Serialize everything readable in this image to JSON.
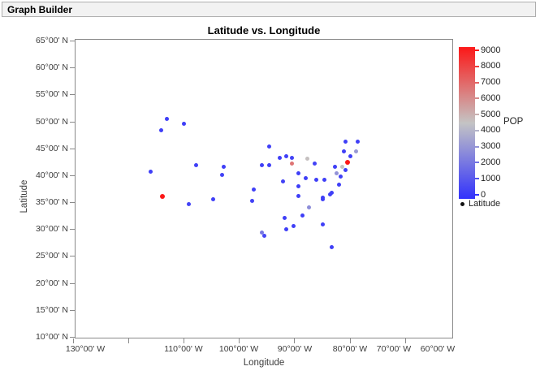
{
  "window": {
    "title": "Graph Builder"
  },
  "chart": {
    "title": "Latitude vs. Longitude",
    "x_axis": {
      "label": "Longitude",
      "ticks": [
        {
          "v": 130,
          "t": "130°00' W"
        },
        {
          "v": 120,
          "t": ""
        },
        {
          "v": 110,
          "t": "110°00' W"
        },
        {
          "v": 100,
          "t": "100°00' W"
        },
        {
          "v": 90,
          "t": "90°00' W"
        },
        {
          "v": 80,
          "t": "80°00' W"
        },
        {
          "v": 70,
          "t": "70°00' W"
        },
        {
          "v": 60,
          "t": "60°00' W"
        }
      ]
    },
    "y_axis": {
      "label": "Latitude",
      "ticks": [
        {
          "v": 65,
          "t": "65°00' N"
        },
        {
          "v": 60,
          "t": "60°00' N"
        },
        {
          "v": 55,
          "t": "55°00' N"
        },
        {
          "v": 50,
          "t": "50°00' N"
        },
        {
          "v": 45,
          "t": "45°00' N"
        },
        {
          "v": 40,
          "t": "40°00' N"
        },
        {
          "v": 35,
          "t": "35°00' N"
        },
        {
          "v": 30,
          "t": "30°00' N"
        },
        {
          "v": 25,
          "t": "25°00' N"
        },
        {
          "v": 20,
          "t": "20°00' N"
        },
        {
          "v": 15,
          "t": "15°00' N"
        },
        {
          "v": 10,
          "t": "10°00' N"
        }
      ]
    }
  },
  "legend": {
    "gradient_title": "POP",
    "gradient_ticks": [
      9000,
      8000,
      7000,
      6000,
      5000,
      4000,
      3000,
      2000,
      1000,
      0
    ],
    "marker_item_label": "Latitude"
  },
  "chart_data": {
    "type": "scatter",
    "title": "Latitude vs. Longitude",
    "xlabel": "Longitude",
    "ylabel": "Latitude",
    "x_range_deg_west": [
      129.7,
      61.3
    ],
    "y_range_deg_north": [
      65.3,
      9.7
    ],
    "x_ticks_deg_west": [
      130,
      120,
      110,
      100,
      90,
      80,
      70,
      60
    ],
    "y_ticks_deg_north": [
      65,
      60,
      55,
      50,
      45,
      40,
      35,
      30,
      25,
      20,
      15,
      10
    ],
    "grid": false,
    "legend_position": "right",
    "background_map": "US states with Alaska, Hawaii and island outlines",
    "color_scale": {
      "variable": "POP",
      "min": 0,
      "max": 9000,
      "low_color": "#3232fc",
      "mid_color": "#c4c4c4",
      "high_color": "#fc1818"
    },
    "points": [
      {
        "lon_w": 113.1,
        "lat_n": 50.5,
        "pop": 400
      },
      {
        "lon_w": 110.0,
        "lat_n": 49.6,
        "pop": 400
      },
      {
        "lon_w": 114.0,
        "lat_n": 48.3,
        "pop": 400
      },
      {
        "lon_w": 116.0,
        "lat_n": 40.6,
        "pop": 400
      },
      {
        "lon_w": 113.8,
        "lat_n": 36.1,
        "pop": 9000
      },
      {
        "lon_w": 109.1,
        "lat_n": 34.6,
        "pop": 500
      },
      {
        "lon_w": 107.8,
        "lat_n": 41.8,
        "pop": 400
      },
      {
        "lon_w": 102.7,
        "lat_n": 41.6,
        "pop": 400
      },
      {
        "lon_w": 103.0,
        "lat_n": 40.0,
        "pop": 500
      },
      {
        "lon_w": 104.7,
        "lat_n": 35.5,
        "pop": 400
      },
      {
        "lon_w": 97.3,
        "lat_n": 37.4,
        "pop": 400
      },
      {
        "lon_w": 97.7,
        "lat_n": 35.3,
        "pop": 500
      },
      {
        "lon_w": 94.6,
        "lat_n": 45.4,
        "pop": 400
      },
      {
        "lon_w": 95.9,
        "lat_n": 41.8,
        "pop": 400
      },
      {
        "lon_w": 94.5,
        "lat_n": 41.8,
        "pop": 400
      },
      {
        "lon_w": 92.6,
        "lat_n": 43.2,
        "pop": 400
      },
      {
        "lon_w": 91.4,
        "lat_n": 43.5,
        "pop": 400
      },
      {
        "lon_w": 90.5,
        "lat_n": 43.3,
        "pop": 500
      },
      {
        "lon_w": 90.5,
        "lat_n": 42.1,
        "pop": 6600
      },
      {
        "lon_w": 87.6,
        "lat_n": 43.0,
        "pop": 4600
      },
      {
        "lon_w": 86.3,
        "lat_n": 42.1,
        "pop": 500
      },
      {
        "lon_w": 92.1,
        "lat_n": 38.9,
        "pop": 500
      },
      {
        "lon_w": 89.3,
        "lat_n": 40.3,
        "pop": 400
      },
      {
        "lon_w": 87.9,
        "lat_n": 39.4,
        "pop": 400
      },
      {
        "lon_w": 86.0,
        "lat_n": 39.2,
        "pop": 400
      },
      {
        "lon_w": 89.2,
        "lat_n": 37.9,
        "pop": 400
      },
      {
        "lon_w": 89.3,
        "lat_n": 36.2,
        "pop": 400
      },
      {
        "lon_w": 84.8,
        "lat_n": 35.6,
        "pop": 400
      },
      {
        "lon_w": 87.4,
        "lat_n": 34.0,
        "pop": 2800
      },
      {
        "lon_w": 91.8,
        "lat_n": 32.1,
        "pop": 400
      },
      {
        "lon_w": 88.6,
        "lat_n": 32.5,
        "pop": 400
      },
      {
        "lon_w": 90.1,
        "lat_n": 30.6,
        "pop": 400
      },
      {
        "lon_w": 91.5,
        "lat_n": 29.9,
        "pop": 400
      },
      {
        "lon_w": 95.9,
        "lat_n": 29.3,
        "pop": 2200
      },
      {
        "lon_w": 95.5,
        "lat_n": 28.8,
        "pop": 600
      },
      {
        "lon_w": 84.9,
        "lat_n": 30.8,
        "pop": 400
      },
      {
        "lon_w": 83.2,
        "lat_n": 26.6,
        "pop": 400
      },
      {
        "lon_w": 83.3,
        "lat_n": 36.7,
        "pop": 400
      },
      {
        "lon_w": 84.9,
        "lat_n": 35.9,
        "pop": 400
      },
      {
        "lon_w": 83.5,
        "lat_n": 36.5,
        "pop": 400
      },
      {
        "lon_w": 81.9,
        "lat_n": 38.3,
        "pop": 400
      },
      {
        "lon_w": 84.5,
        "lat_n": 39.1,
        "pop": 400
      },
      {
        "lon_w": 80.8,
        "lat_n": 46.3,
        "pop": 400
      },
      {
        "lon_w": 78.5,
        "lat_n": 46.2,
        "pop": 400
      },
      {
        "lon_w": 81.1,
        "lat_n": 44.4,
        "pop": 400
      },
      {
        "lon_w": 78.9,
        "lat_n": 44.5,
        "pop": 3200
      },
      {
        "lon_w": 79.9,
        "lat_n": 43.6,
        "pop": 400
      },
      {
        "lon_w": 80.4,
        "lat_n": 42.4,
        "pop": 9000
      },
      {
        "lon_w": 82.6,
        "lat_n": 41.6,
        "pop": 400
      },
      {
        "lon_w": 81.3,
        "lat_n": 41.6,
        "pop": 4500
      },
      {
        "lon_w": 80.8,
        "lat_n": 41.0,
        "pop": 400
      },
      {
        "lon_w": 82.3,
        "lat_n": 40.4,
        "pop": 3000
      },
      {
        "lon_w": 81.6,
        "lat_n": 39.7,
        "pop": 400
      }
    ]
  }
}
